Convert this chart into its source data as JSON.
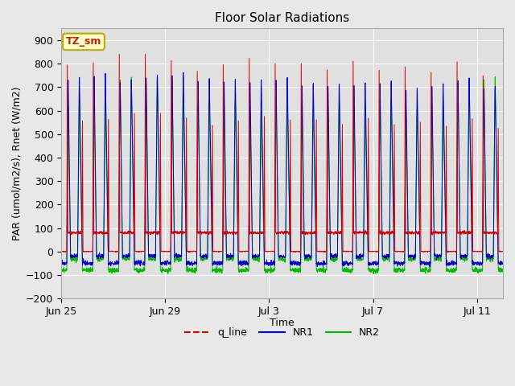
{
  "title": "Floor Solar Radiations",
  "xlabel": "Time",
  "ylabel": "PAR (umol/m2/s), Rnet (W/m2)",
  "ylim": [
    -200,
    950
  ],
  "yticks": [
    -200,
    -100,
    0,
    100,
    200,
    300,
    400,
    500,
    600,
    700,
    800,
    900
  ],
  "fig_bg_color": "#e8e8e8",
  "plot_bg_color": "#e0e0e0",
  "grid_color": "#ffffff",
  "annotation_box": "TZ_sm",
  "annotation_box_bg": "#ffffcc",
  "annotation_box_edge": "#bbaa00",
  "annotation_text_color": "#cc2200",
  "legend_entries": [
    "q_line",
    "NR1",
    "NR2"
  ],
  "legend_colors": [
    "#dd0000",
    "#0000cc",
    "#00bb00"
  ],
  "line_colors": {
    "q_line": "#dd0000",
    "NR1": "#0000cc",
    "NR2": "#00bb00"
  },
  "n_days": 17,
  "x_tick_labels": [
    "Jun 25",
    "Jun 29",
    "Jul 3",
    "Jul 7",
    "Jul 11"
  ],
  "x_tick_positions": [
    0,
    4,
    8,
    12,
    16
  ]
}
